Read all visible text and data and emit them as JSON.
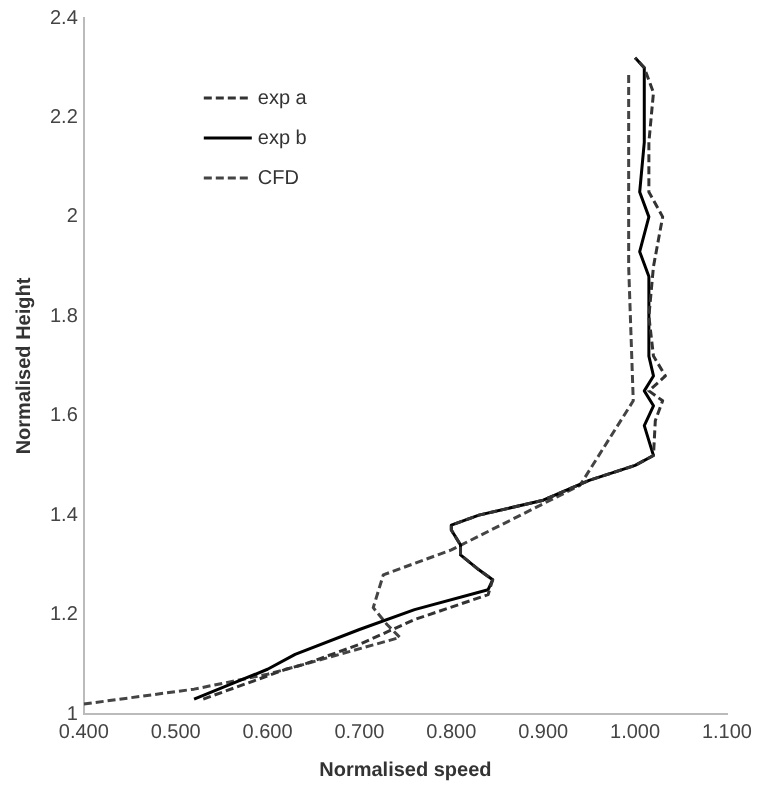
{
  "chart_data": {
    "type": "line",
    "xlabel": "Normalised speed",
    "ylabel": "Normalised Height",
    "xlim": [
      0.4,
      1.1
    ],
    "xticks": [
      {
        "value": 0.4,
        "label": "0.400"
      },
      {
        "value": 0.5,
        "label": "0.500"
      },
      {
        "value": 0.6,
        "label": "0.600"
      },
      {
        "value": 0.7,
        "label": "0.700"
      },
      {
        "value": 0.8,
        "label": "0.800"
      },
      {
        "value": 0.9,
        "label": "0.900"
      },
      {
        "value": 1.0,
        "label": "1.000"
      },
      {
        "value": 1.1,
        "label": "1.100"
      }
    ],
    "ylim": [
      1,
      2.4
    ],
    "yticks": [
      1,
      1.2,
      1.4,
      1.6,
      1.8,
      2,
      2.2,
      2.4
    ],
    "grid": false,
    "legend": "top left",
    "marker": "none",
    "series": [
      {
        "name": "exp a",
        "color": "#333333",
        "line_style": "dashed",
        "x": [
          0.53,
          0.59,
          0.62,
          0.64,
          0.7,
          0.76,
          0.84,
          0.845,
          0.83,
          0.81,
          0.81,
          0.8,
          0.8,
          0.83,
          0.9,
          0.95,
          1.0,
          1.02,
          1.022,
          1.03,
          1.015,
          1.033,
          1.02,
          1.015,
          1.02,
          1.03,
          1.015,
          1.015,
          1.02,
          1.01,
          1.0
        ],
        "values": [
          1.03,
          1.07,
          1.09,
          1.1,
          1.14,
          1.19,
          1.24,
          1.27,
          1.29,
          1.32,
          1.34,
          1.37,
          1.38,
          1.4,
          1.43,
          1.47,
          1.5,
          1.52,
          1.59,
          1.63,
          1.65,
          1.68,
          1.72,
          1.8,
          1.9,
          2.0,
          2.05,
          2.15,
          2.25,
          2.3,
          2.32
        ]
      },
      {
        "name": "exp b",
        "color": "#000000",
        "line_style": "solid",
        "x": [
          0.52,
          0.56,
          0.6,
          0.63,
          0.7,
          0.76,
          0.84,
          0.845,
          0.83,
          0.81,
          0.81,
          0.8,
          0.8,
          0.83,
          0.9,
          0.95,
          1.0,
          1.02,
          1.015,
          1.01,
          1.02,
          1.01,
          1.02,
          1.015,
          1.015,
          1.005,
          1.015,
          1.005,
          1.01,
          1.01,
          1.0
        ],
        "values": [
          1.03,
          1.06,
          1.09,
          1.12,
          1.17,
          1.21,
          1.25,
          1.27,
          1.29,
          1.32,
          1.34,
          1.37,
          1.38,
          1.4,
          1.43,
          1.47,
          1.5,
          1.52,
          1.55,
          1.58,
          1.62,
          1.65,
          1.68,
          1.72,
          1.88,
          1.93,
          2.0,
          2.05,
          2.15,
          2.3,
          2.32
        ]
      },
      {
        "name": "CFD",
        "color": "#444444",
        "line_style": "dashed",
        "x": [
          0.4,
          0.52,
          0.56,
          0.6,
          0.64,
          0.744,
          0.73,
          0.715,
          0.726,
          0.8,
          0.94,
          0.998,
          0.993,
          0.993
        ],
        "values": [
          1.02,
          1.05,
          1.065,
          1.08,
          1.1,
          1.154,
          1.18,
          1.214,
          1.28,
          1.33,
          1.46,
          1.63,
          1.9,
          2.29
        ]
      }
    ]
  }
}
